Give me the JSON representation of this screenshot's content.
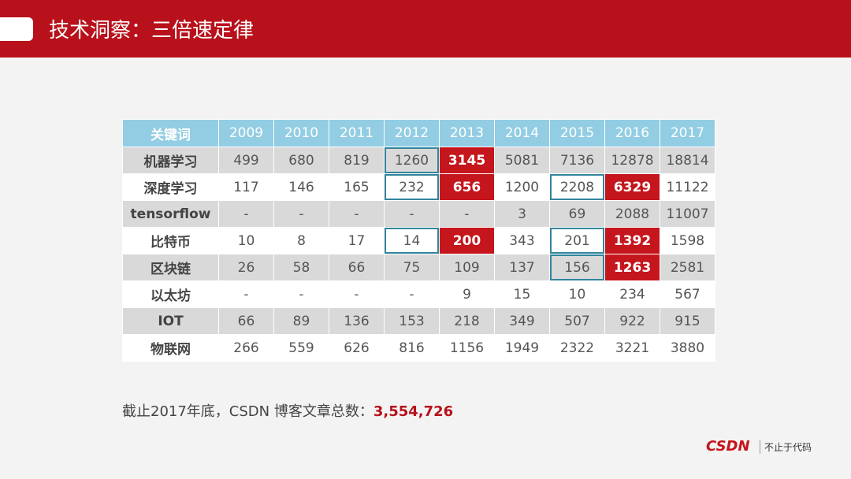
{
  "header": {
    "title": "技术洞察：三倍速定律"
  },
  "table": {
    "columns": [
      "关键词",
      "2009",
      "2010",
      "2011",
      "2012",
      "2013",
      "2014",
      "2015",
      "2016",
      "2017"
    ],
    "rows": [
      [
        "机器学习",
        "499",
        "680",
        "819",
        "1260",
        "3145",
        "5081",
        "7136",
        "12878",
        "18814"
      ],
      [
        "深度学习",
        "117",
        "146",
        "165",
        "232",
        "656",
        "1200",
        "2208",
        "6329",
        "11122"
      ],
      [
        "tensorflow",
        "-",
        "-",
        "-",
        "-",
        "-",
        "3",
        "69",
        "2088",
        "11007"
      ],
      [
        "比特币",
        "10",
        "8",
        "17",
        "14",
        "200",
        "343",
        "201",
        "1392",
        "1598"
      ],
      [
        "区块链",
        "26",
        "58",
        "66",
        "75",
        "109",
        "137",
        "156",
        "1263",
        "2581"
      ],
      [
        "以太坊",
        "-",
        "-",
        "-",
        "-",
        "9",
        "15",
        "10",
        "234",
        "567"
      ],
      [
        "IOT",
        "66",
        "89",
        "136",
        "153",
        "218",
        "349",
        "507",
        "922",
        "915"
      ],
      [
        "物联网",
        "266",
        "559",
        "626",
        "816",
        "1156",
        "1949",
        "2322",
        "3221",
        "3880"
      ]
    ]
  },
  "footnote": {
    "text": "截止2017年底，CSDN 博客文章总数：",
    "total": "3,554,726"
  },
  "logo": {
    "brand": "CSDN",
    "slogan": "不止于代码"
  }
}
